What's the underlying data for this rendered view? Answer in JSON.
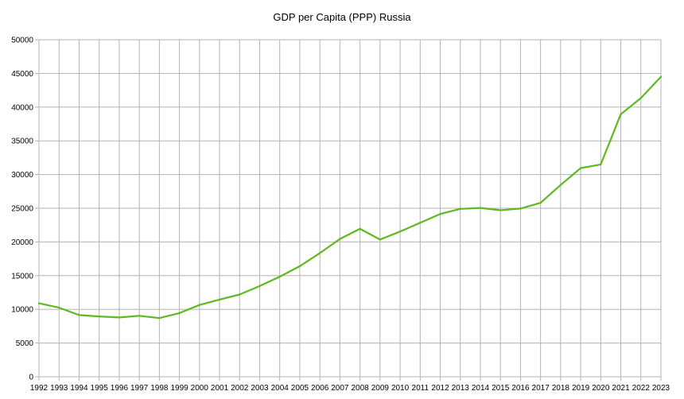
{
  "chart_data": {
    "type": "line",
    "title": "GDP per Capita (PPP) Russia",
    "xlabel": "",
    "ylabel": "",
    "ylim": [
      0,
      50000
    ],
    "y_ticks": [
      0,
      5000,
      10000,
      15000,
      20000,
      25000,
      30000,
      35000,
      40000,
      45000,
      50000
    ],
    "grid": true,
    "legend": "none",
    "line_color": "#5eb91e",
    "x": [
      "1992",
      "1993",
      "1994",
      "1995",
      "1996",
      "1997",
      "1998",
      "1999",
      "2000",
      "2001",
      "2002",
      "2003",
      "2004",
      "2005",
      "2006",
      "2007",
      "2008",
      "2009",
      "2010",
      "2011",
      "2012",
      "2013",
      "2014",
      "2015",
      "2016",
      "2017",
      "2018",
      "2019",
      "2020",
      "2021",
      "2022",
      "2023"
    ],
    "series": [
      {
        "values": [
          10900,
          10250,
          9150,
          8950,
          8800,
          9050,
          8700,
          9450,
          10650,
          11450,
          12200,
          13450,
          14850,
          16400,
          18350,
          20450,
          21950,
          20350,
          21550,
          22850,
          24150,
          24900,
          25050,
          24700,
          24950,
          25800,
          28450,
          30950,
          31500,
          38950,
          41350,
          44500
        ]
      }
    ]
  }
}
